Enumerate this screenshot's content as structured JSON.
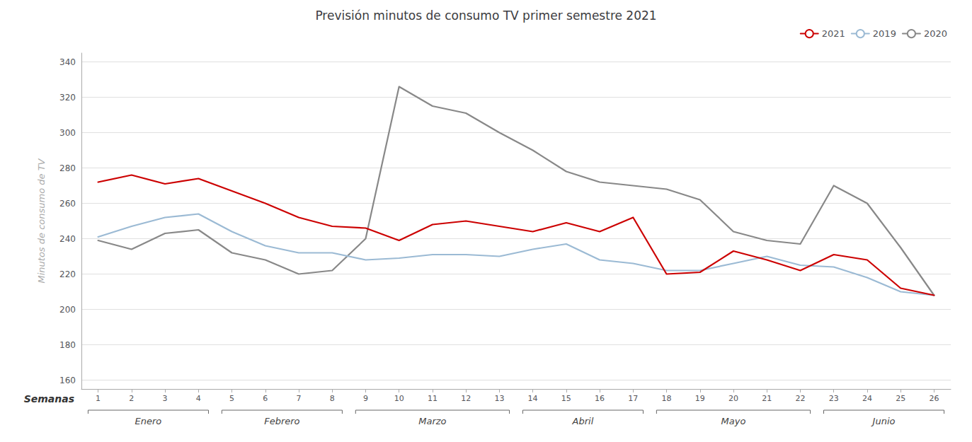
{
  "chart_data": {
    "type": "line",
    "title": "Previsión minutos de consumo TV primer semestre 2021",
    "xlabel": "Semanas",
    "ylabel": "Minutos de consumo de TV",
    "x": [
      1,
      2,
      3,
      4,
      5,
      6,
      7,
      8,
      9,
      10,
      11,
      12,
      13,
      14,
      15,
      16,
      17,
      18,
      19,
      20,
      21,
      22,
      23,
      24,
      25,
      26
    ],
    "series": [
      {
        "name": "2021",
        "color": "#cc0000",
        "values": [
          272,
          276,
          271,
          274,
          267,
          260,
          252,
          247,
          246,
          239,
          248,
          250,
          247,
          244,
          249,
          244,
          252,
          220,
          221,
          233,
          228,
          222,
          231,
          228,
          212,
          208
        ]
      },
      {
        "name": "2019",
        "color": "#9bbad4",
        "values": [
          241,
          247,
          252,
          254,
          244,
          236,
          232,
          232,
          228,
          229,
          231,
          231,
          230,
          234,
          237,
          228,
          226,
          222,
          222,
          226,
          230,
          225,
          224,
          218,
          210,
          208
        ]
      },
      {
        "name": "2020",
        "color": "#888888",
        "values": [
          239,
          234,
          243,
          245,
          232,
          228,
          220,
          222,
          240,
          326,
          315,
          311,
          300,
          290,
          278,
          272,
          270,
          268,
          262,
          244,
          239,
          237,
          270,
          260,
          235,
          208
        ]
      }
    ],
    "xlim": [
      0.5,
      26.5
    ],
    "xticks": [
      1,
      2,
      3,
      4,
      5,
      6,
      7,
      8,
      9,
      10,
      11,
      12,
      13,
      14,
      15,
      16,
      17,
      18,
      19,
      20,
      21,
      22,
      23,
      24,
      25,
      26
    ],
    "ylim": [
      155,
      345
    ],
    "yticks": [
      160,
      180,
      200,
      220,
      240,
      260,
      280,
      300,
      320,
      340
    ],
    "grid": true,
    "legend": "upper right",
    "annotations": [
      {
        "text": "Enero",
        "x_start": 1,
        "x_end": 4
      },
      {
        "text": "Febrero",
        "x_start": 5,
        "x_end": 8
      },
      {
        "text": "Marzo",
        "x_start": 9,
        "x_end": 13
      },
      {
        "text": "Abril",
        "x_start": 14,
        "x_end": 17
      },
      {
        "text": "Mayo",
        "x_start": 18,
        "x_end": 22
      },
      {
        "text": "Junio",
        "x_start": 23,
        "x_end": 26
      }
    ]
  }
}
